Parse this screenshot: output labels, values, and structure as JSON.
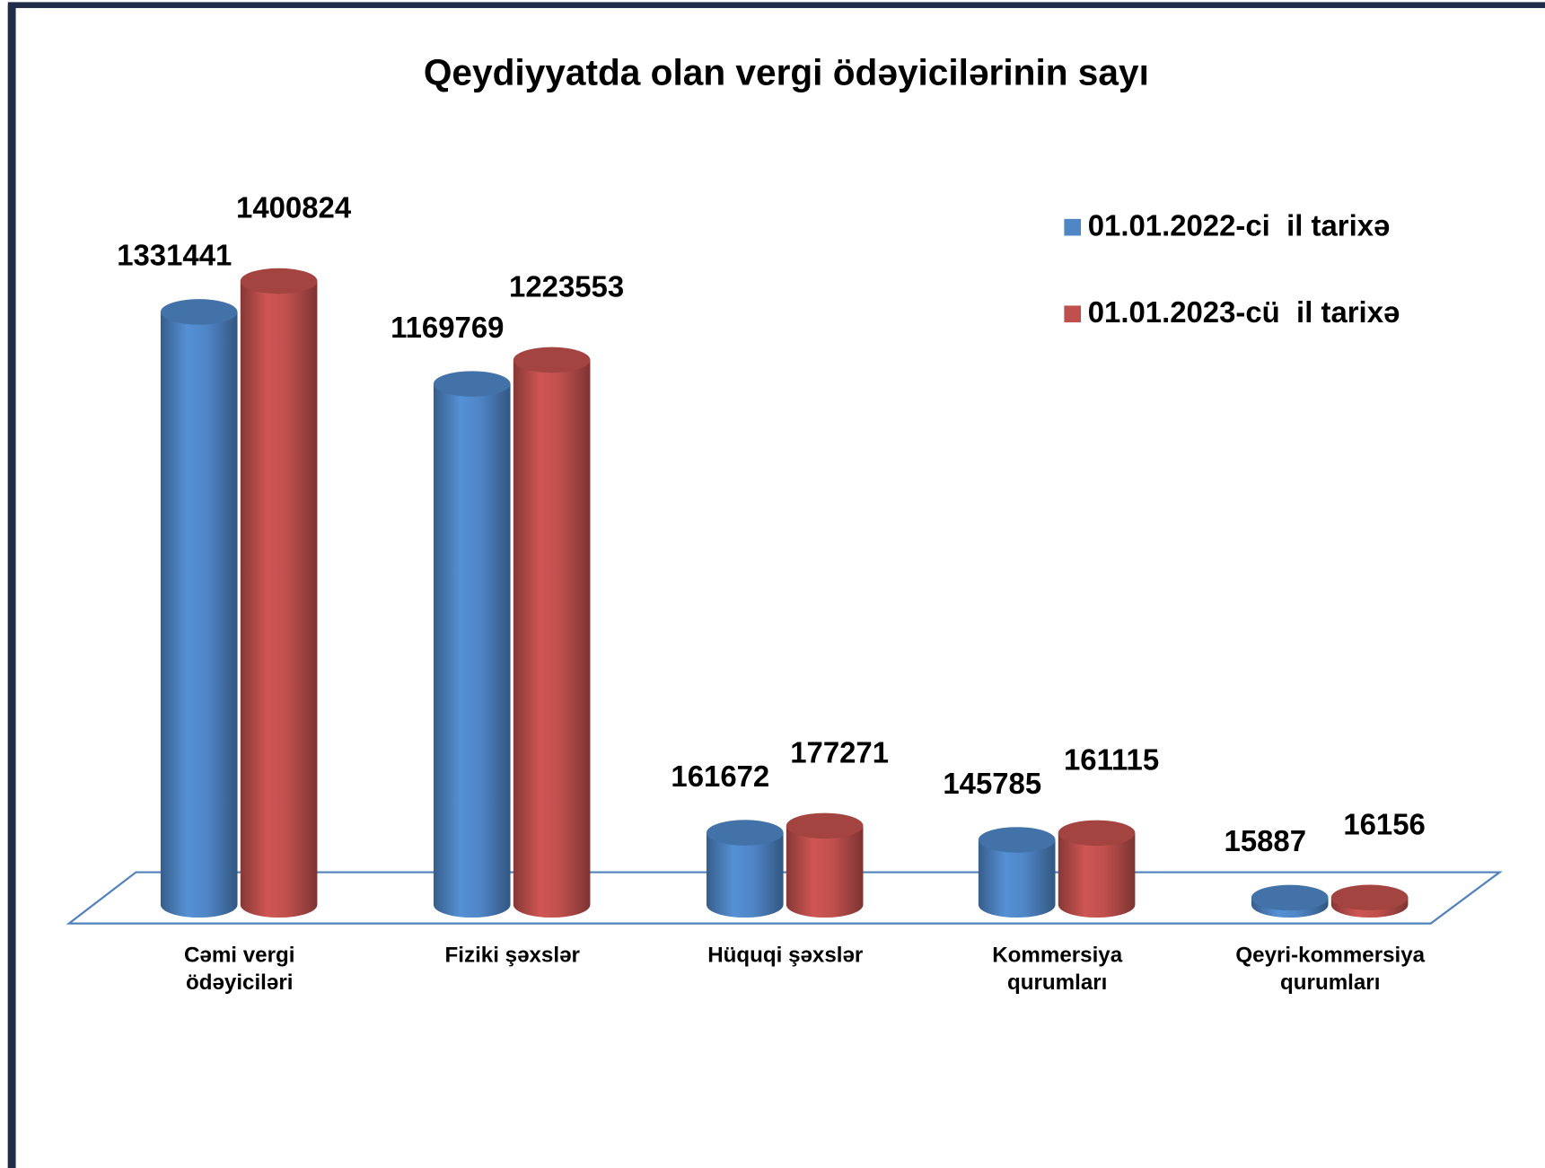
{
  "chart_data": {
    "type": "bar3d",
    "title": "Qeydiyyatda olan vergi ödəyicilərinin  sayı",
    "categories": [
      "Cəmi vergi ödəyiciləri",
      "Fiziki şəxslər",
      "Hüquqi şəxslər",
      "Kommersiya qurumları",
      "Qeyri-kommersiya qurumları"
    ],
    "series": [
      {
        "name": "01.01.2022-ci  il tarixə",
        "color": "#4f86c6",
        "values": [
          1331441,
          1169769,
          161672,
          145785,
          15887
        ]
      },
      {
        "name": "01.01.2023-cü  il tarixə",
        "color": "#c0504d",
        "values": [
          1400824,
          1223553,
          177271,
          161115,
          16156
        ]
      }
    ],
    "legend": "upper right"
  }
}
